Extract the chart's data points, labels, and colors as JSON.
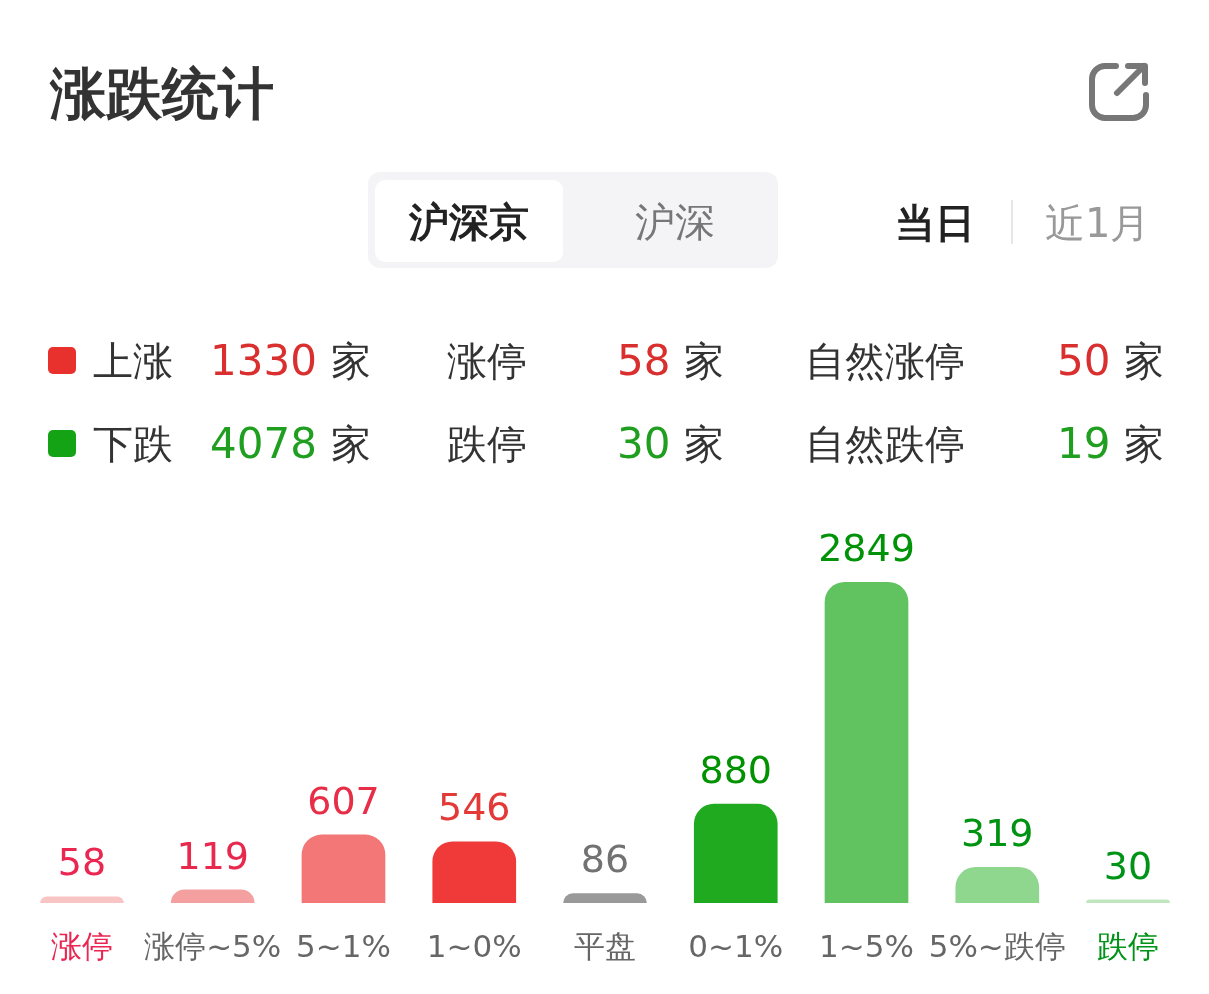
{
  "chart_data": {
    "type": "bar",
    "title": "涨跌统计",
    "categories": [
      "涨停",
      "涨停~5%",
      "5~1%",
      "1~0%",
      "平盘",
      "0~1%",
      "1~5%",
      "5%~跌停",
      "跌停"
    ],
    "values": [
      58,
      119,
      607,
      546,
      86,
      880,
      2849,
      319,
      30
    ],
    "colors": [
      "#f8c4c4",
      "#f4a0a0",
      "#f47777",
      "#f03a3a",
      "#999999",
      "#1faa1f",
      "#60c360",
      "#8fd68f",
      "#bfe6bf"
    ],
    "data_labels": true,
    "tick_labels": "x",
    "annotations": [
      "沪深京",
      "沪深",
      "当日",
      "近1月",
      "上涨 1330 家",
      "涨停 58 家",
      "自然涨停 50 家",
      "下跌 4078 家",
      "跌停 30 家",
      "自然跌停 19 家"
    ]
  }
}
